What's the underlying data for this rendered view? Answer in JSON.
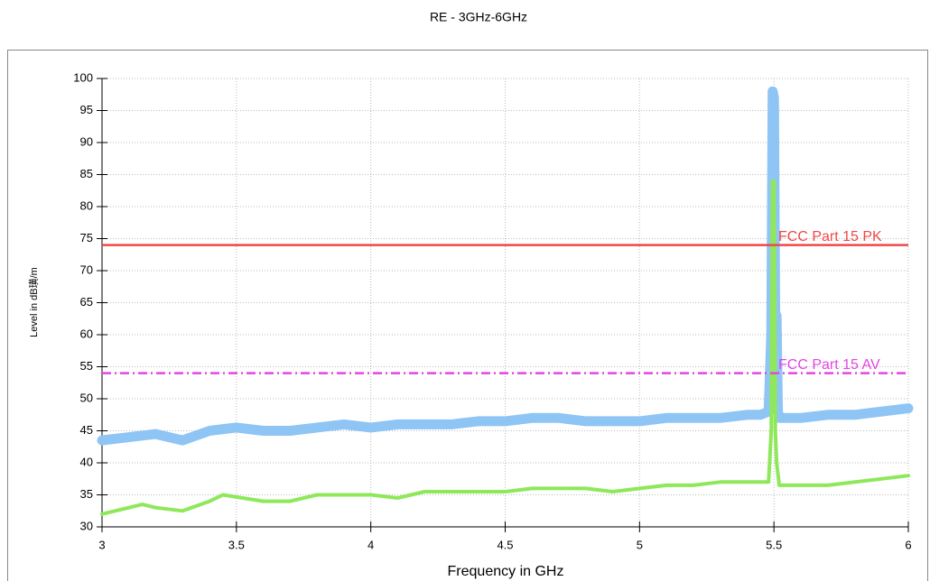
{
  "chart_data": {
    "type": "line",
    "title": "RE - 3GHz-6GHz",
    "x_label": "Frequency in GHz",
    "y_label": "Level in dB璜/m",
    "xlim": [
      3,
      6
    ],
    "xticks": [
      3,
      3.5,
      4,
      4.5,
      5,
      5.5,
      6
    ],
    "ylim": [
      30,
      100
    ],
    "yticks": [
      30,
      35,
      40,
      45,
      50,
      55,
      60,
      65,
      70,
      75,
      80,
      85,
      90,
      95,
      100
    ],
    "grid": true,
    "series": [
      {
        "color": "#8ec5f5",
        "x": [
          3.0,
          3.1,
          3.2,
          3.25,
          3.3,
          3.4,
          3.5,
          3.6,
          3.7,
          3.8,
          3.9,
          4.0,
          4.1,
          4.2,
          4.3,
          4.4,
          4.5,
          4.6,
          4.7,
          4.8,
          4.9,
          5.0,
          5.1,
          5.2,
          5.3,
          5.4,
          5.45,
          5.48,
          5.49,
          5.495,
          5.5,
          5.505,
          5.51,
          5.515,
          5.52,
          5.6,
          5.7,
          5.8,
          5.9,
          6.0
        ],
        "values": [
          43.5,
          44,
          44.5,
          44,
          43.5,
          45,
          45.5,
          45,
          45,
          45.5,
          46,
          45.5,
          46,
          46,
          46,
          46.5,
          46.5,
          47,
          47,
          46.5,
          46.5,
          46.5,
          47,
          47,
          47,
          47.5,
          47.5,
          48,
          60,
          98,
          97,
          60,
          63,
          48,
          47,
          47,
          47.5,
          47.5,
          48,
          48.5
        ]
      },
      {
        "color": "#8ee85a",
        "x": [
          3.0,
          3.1,
          3.15,
          3.2,
          3.3,
          3.4,
          3.45,
          3.6,
          3.7,
          3.8,
          3.9,
          4.0,
          4.1,
          4.2,
          4.3,
          4.4,
          4.5,
          4.6,
          4.7,
          4.8,
          4.9,
          5.0,
          5.1,
          5.2,
          5.3,
          5.4,
          5.45,
          5.48,
          5.49,
          5.495,
          5.5,
          5.505,
          5.51,
          5.52,
          5.6,
          5.7,
          5.8,
          5.9,
          6.0
        ],
        "values": [
          32,
          33,
          33.5,
          33,
          32.5,
          34,
          35,
          34,
          34,
          35,
          35,
          35,
          34.5,
          35.5,
          35.5,
          35.5,
          35.5,
          36,
          36,
          36,
          35.5,
          36,
          36.5,
          36.5,
          37,
          37,
          37,
          37,
          45,
          84,
          84,
          45,
          40,
          36.5,
          36.5,
          36.5,
          37,
          37.5,
          38
        ]
      }
    ],
    "limits": [
      {
        "name": "FCC Part 15 PK",
        "value": 74,
        "color": "#f04848",
        "dash": false
      },
      {
        "name": "FCC Part 15 AV",
        "value": 54,
        "color": "#e444e4",
        "dash": true
      }
    ]
  }
}
